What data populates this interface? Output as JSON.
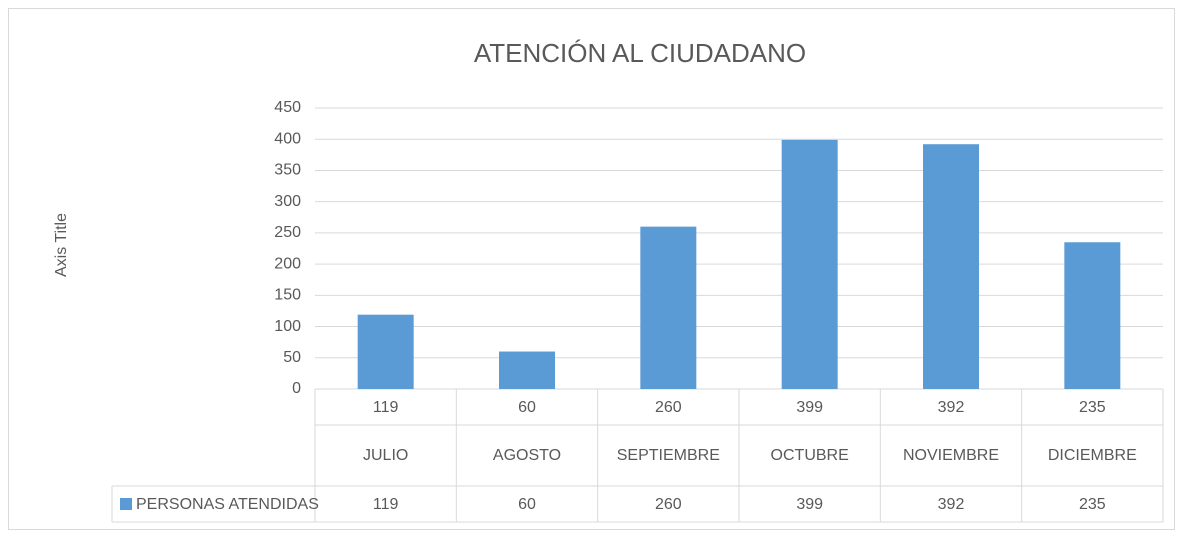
{
  "chart_data": {
    "type": "bar",
    "title": "ATENCIÓN AL CIUDADANO",
    "y_axis_title": "Axis Title",
    "categories": [
      "JULIO",
      "AGOSTO",
      "SEPTIEMBRE",
      "OCTUBRE",
      "NOVIEMBRE",
      "DICIEMBRE"
    ],
    "series": [
      {
        "name": "PERSONAS ATENDIDAS",
        "color": "#5b9bd5",
        "values": [
          119,
          60,
          260,
          399,
          392,
          235
        ]
      }
    ],
    "ylim": [
      0,
      450
    ],
    "yticks": [
      0,
      50,
      100,
      150,
      200,
      250,
      300,
      350,
      400,
      450
    ],
    "grid": true,
    "data_table": true
  }
}
